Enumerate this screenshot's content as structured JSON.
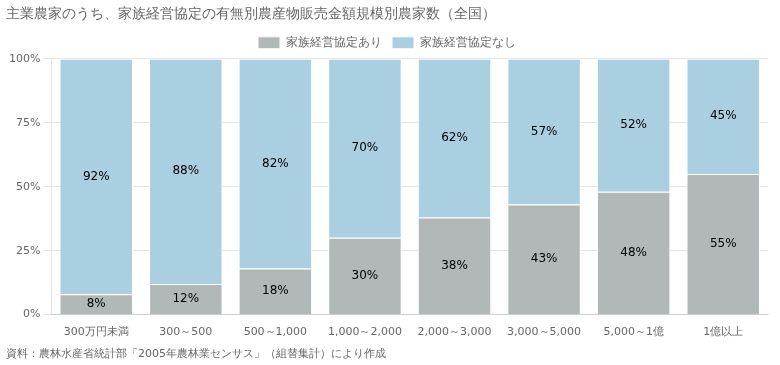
{
  "chart_data": {
    "type": "bar",
    "title": "主業農家のうち、家族経営協定の有無別農産物販売金額規模別農家数（全国）",
    "annotations": [
      "資料：農林水産省統計部「2005年農林業センサス」（組替集計）により作成"
    ],
    "categories": [
      "300万円未満",
      "300～500",
      "500～1,000",
      "1,000～2,000",
      "2,000～3,000",
      "3,000～5,000",
      "5,000～1億",
      "1億以上"
    ],
    "series": [
      {
        "name": "家族経営協定あり",
        "color": "#b2b8b8",
        "values": [
          8,
          12,
          18,
          30,
          38,
          43,
          48,
          55
        ],
        "value_labels": [
          "8%",
          "12%",
          "18%",
          "30%",
          "38%",
          "43%",
          "48%",
          "55%"
        ]
      },
      {
        "name": "家族経営協定なし",
        "color": "#aacfe0",
        "values": [
          92,
          88,
          82,
          70,
          62,
          57,
          52,
          45
        ],
        "value_labels": [
          "92%",
          "88%",
          "82%",
          "70%",
          "62%",
          "57%",
          "52%",
          "45%"
        ]
      }
    ],
    "ylim": [
      0,
      100
    ],
    "yticks": [
      {
        "value": 0,
        "label": "0%"
      },
      {
        "value": 25,
        "label": "25%"
      },
      {
        "value": 50,
        "label": "50%"
      },
      {
        "value": 75,
        "label": "75%"
      },
      {
        "value": 100,
        "label": "100%"
      }
    ],
    "stacked": true,
    "data_labels": true,
    "grid": true,
    "legend": "top"
  }
}
